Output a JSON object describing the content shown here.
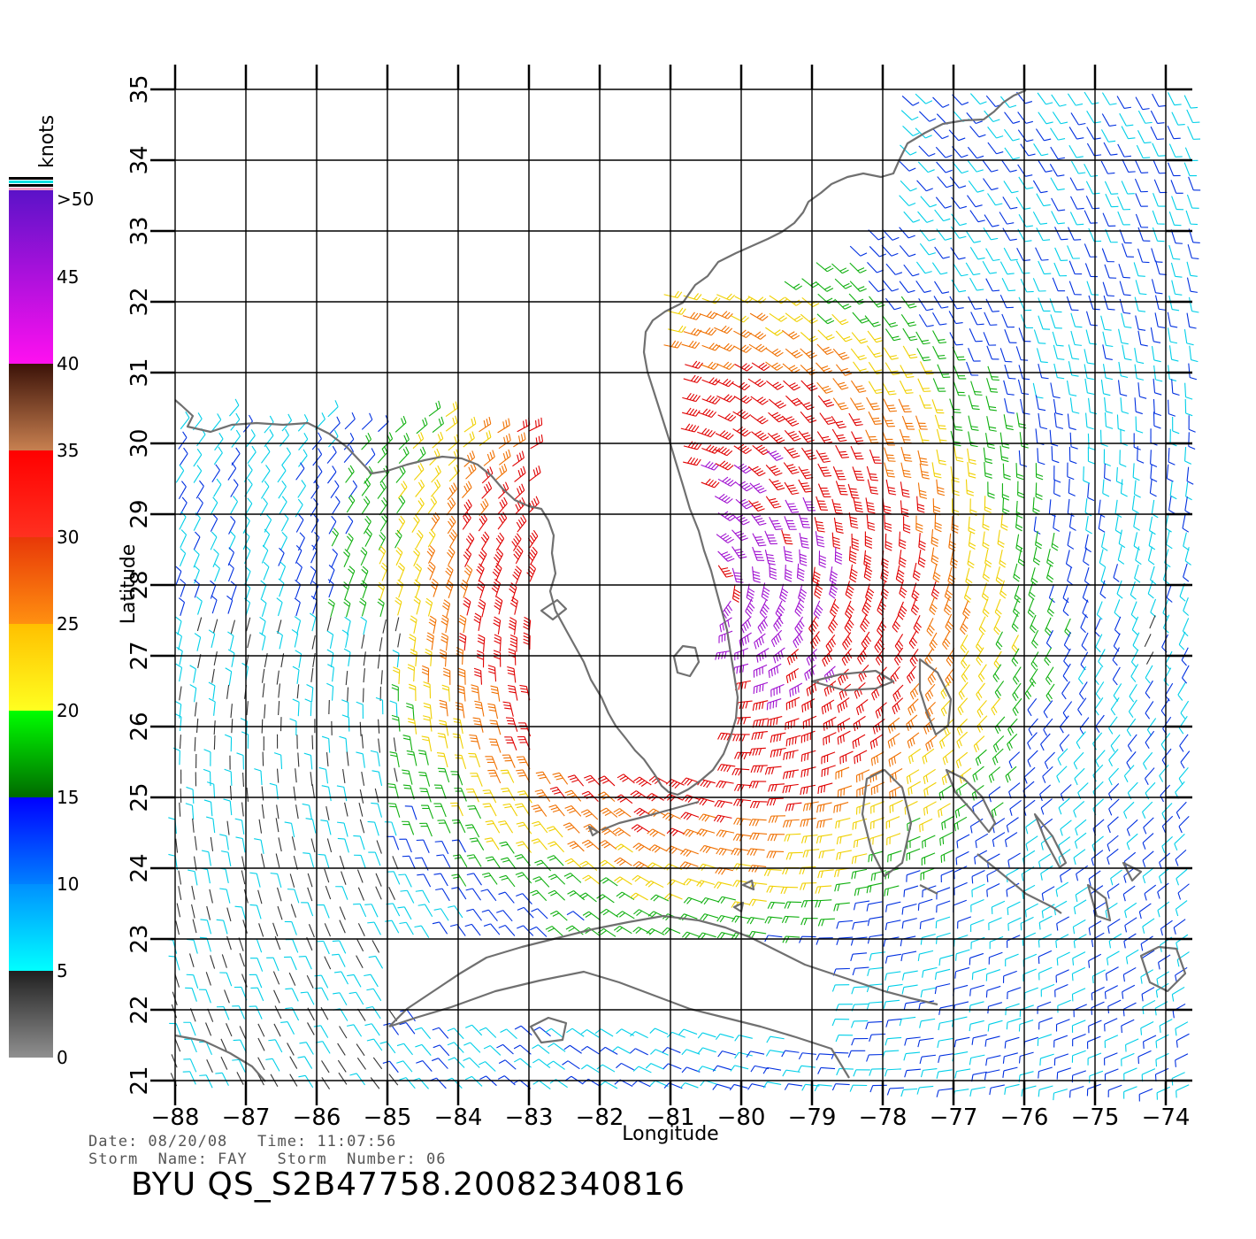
{
  "colorbar": {
    "unit_label": "knots",
    "labels": [
      ">50",
      "45",
      "40",
      "35",
      "30",
      "25",
      "20",
      "15",
      "10",
      "5",
      "0"
    ],
    "segments": [
      {
        "from": 40,
        "to": 50,
        "top": "#5b12c8",
        "bottom": "#ff10f0"
      },
      {
        "from": 35,
        "to": 40,
        "top": "#3b1208",
        "bottom": "#c88050"
      },
      {
        "from": 30,
        "to": 35,
        "top": "#ff0000",
        "bottom": "#ff3020"
      },
      {
        "from": 25,
        "to": 30,
        "top": "#e83808",
        "bottom": "#ff9010"
      },
      {
        "from": 20,
        "to": 25,
        "top": "#ffc000",
        "bottom": "#ffff20"
      },
      {
        "from": 15,
        "to": 20,
        "top": "#00ff00",
        "bottom": "#006a00"
      },
      {
        "from": 10,
        "to": 15,
        "top": "#0000ff",
        "bottom": "#0080ff"
      },
      {
        "from": 5,
        "to": 10,
        "top": "#0090ff",
        "bottom": "#00ffff"
      },
      {
        "from": 0,
        "to": 5,
        "top": "#202020",
        "bottom": "#909090"
      }
    ]
  },
  "axes": {
    "x_label": "Longitude",
    "y_label": "Latitude",
    "lon_range": [
      -88,
      -74
    ],
    "lat_range": [
      21,
      35
    ],
    "lon_ticks": [
      "-88",
      "-87",
      "-86",
      "-85",
      "-84",
      "-83",
      "-82",
      "-81",
      "-80",
      "-79",
      "-78",
      "-77",
      "-76",
      "-75",
      "-74"
    ],
    "lat_ticks": [
      "21",
      "22",
      "23",
      "24",
      "25",
      "26",
      "27",
      "28",
      "29",
      "30",
      "31",
      "32",
      "33",
      "34",
      "35"
    ]
  },
  "wind_field": {
    "center": {
      "lon": -80.6,
      "lat": 27.9
    },
    "peak_knots": 42,
    "colors": {
      "calm": "#333333",
      "light": "#00cfe8",
      "moderate": "#0030e0",
      "fresh": "#10b010",
      "strong": "#f0d000",
      "gale": "#f07000",
      "storm": "#e00000",
      "violent": "#a010d0"
    }
  },
  "land_color": "#707070",
  "footer": {
    "line1": "Date: 08/20/08   Time: 11:07:56",
    "line2": "Storm  Name: FAY   Storm  Number: 06",
    "file_id": "BYU  QS_S2B47758.20082340816"
  }
}
